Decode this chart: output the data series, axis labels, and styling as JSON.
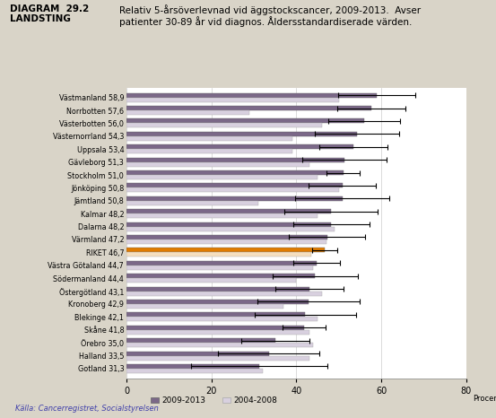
{
  "title_left": "DIAGRAM  29.2\nLANDSTING",
  "title_right": "Relativ 5-årsöverlevnad vid äggstockscancer, 2009-2013.  Avser\npatienter 30-89 år vid diagnos. Åldersstandardiserade värden.",
  "categories": [
    "Västmanland 58,9",
    "Norrbotten 57,6",
    "Västerbotten 56,0",
    "Västernorrland 54,3",
    "Uppsala 53,4",
    "Gävleborg 51,3",
    "Stockholm 51,0",
    "Jönköping 50,8",
    "Jämtland 50,8",
    "Kalmar 48,2",
    "Dalarna 48,2",
    "Värmland 47,2",
    "RIKET 46,7",
    "Västra Götaland 44,7",
    "Södermanland 44,4",
    "Östergötland 43,1",
    "Kronoberg 42,9",
    "Blekinge 42,1",
    "Skåne 41,8",
    "Örebro 35,0",
    "Halland 33,5",
    "Gotland 31,3"
  ],
  "values_2009_2013": [
    58.9,
    57.6,
    56.0,
    54.3,
    53.4,
    51.3,
    51.0,
    50.8,
    50.8,
    48.2,
    48.2,
    47.2,
    46.7,
    44.7,
    44.4,
    43.1,
    42.9,
    42.1,
    41.8,
    35.0,
    33.5,
    31.3
  ],
  "values_2004_2008": [
    50.0,
    29.0,
    46.0,
    39.0,
    39.0,
    43.0,
    45.0,
    50.0,
    31.0,
    45.0,
    49.0,
    47.0,
    43.5,
    44.0,
    40.0,
    46.0,
    37.0,
    45.0,
    43.0,
    44.0,
    43.0,
    32.0
  ],
  "xerr_2009_2013": [
    9.0,
    8.0,
    8.5,
    10.0,
    8.0,
    10.0,
    4.0,
    8.0,
    11.0,
    11.0,
    9.0,
    9.0,
    3.0,
    5.5,
    10.0,
    8.0,
    12.0,
    12.0,
    5.0,
    8.0,
    12.0,
    16.0
  ],
  "color_2009_2013": "#7b6888",
  "color_riket_2009": "#e07b00",
  "color_2004_2008": "#d8d0df",
  "color_riket_2004": "#f5dfc0",
  "xlim": [
    0,
    80
  ],
  "xticks": [
    0,
    20,
    40,
    60,
    80
  ],
  "background_color": "#d9d4c8",
  "plot_bg": "#ffffff",
  "source_text": "Källa: Cancerregistret, Socialstyrelsen",
  "legend_2009": "2009-2013",
  "legend_2004": "2004-2008"
}
